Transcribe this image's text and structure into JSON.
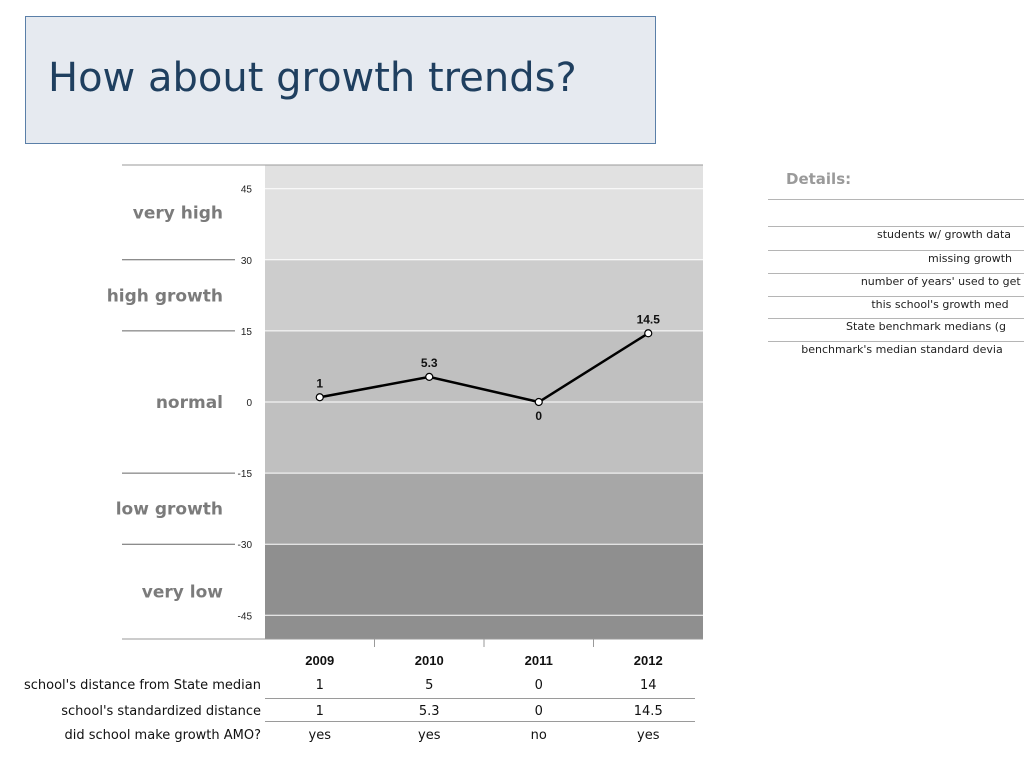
{
  "title": "How about growth trends?",
  "chart_data": {
    "type": "line",
    "categories": [
      "2009",
      "2010",
      "2011",
      "2012"
    ],
    "values": [
      1,
      5.3,
      0,
      14.5
    ],
    "data_labels": [
      "1",
      "5.3",
      "0",
      "14.5"
    ],
    "ylim": [
      -50,
      50
    ],
    "yticks": [
      "45",
      "30",
      "15",
      "0",
      "-15",
      "-30",
      "-45"
    ],
    "bands": [
      {
        "label": "very high",
        "from": 30,
        "to": 50,
        "color": "#e1e1e1"
      },
      {
        "label": "high growth",
        "from": 15,
        "to": 30,
        "color": "#cdcdcd"
      },
      {
        "label": "normal",
        "from": -15,
        "to": 15,
        "color": "#c0c0c0"
      },
      {
        "label": "low growth",
        "from": -30,
        "to": -15,
        "color": "#a7a7a7"
      },
      {
        "label": "very low",
        "from": -50,
        "to": -30,
        "color": "#8f8f8f"
      }
    ]
  },
  "table": {
    "rows": [
      {
        "label": "school's distance from State median",
        "values": [
          "1",
          "5",
          "0",
          "14"
        ]
      },
      {
        "label": "school's standardized distance",
        "values": [
          "1",
          "5.3",
          "0",
          "14.5"
        ]
      },
      {
        "label": "did school make growth AMO?",
        "values": [
          "yes",
          "yes",
          "no",
          "yes"
        ]
      }
    ]
  },
  "details": {
    "title": "Details:",
    "rows": [
      "students w/ growth data",
      "missing growth",
      "number of years' used to get n",
      "this school's growth med",
      "State benchmark medians (g",
      "benchmark's median standard devia"
    ]
  }
}
